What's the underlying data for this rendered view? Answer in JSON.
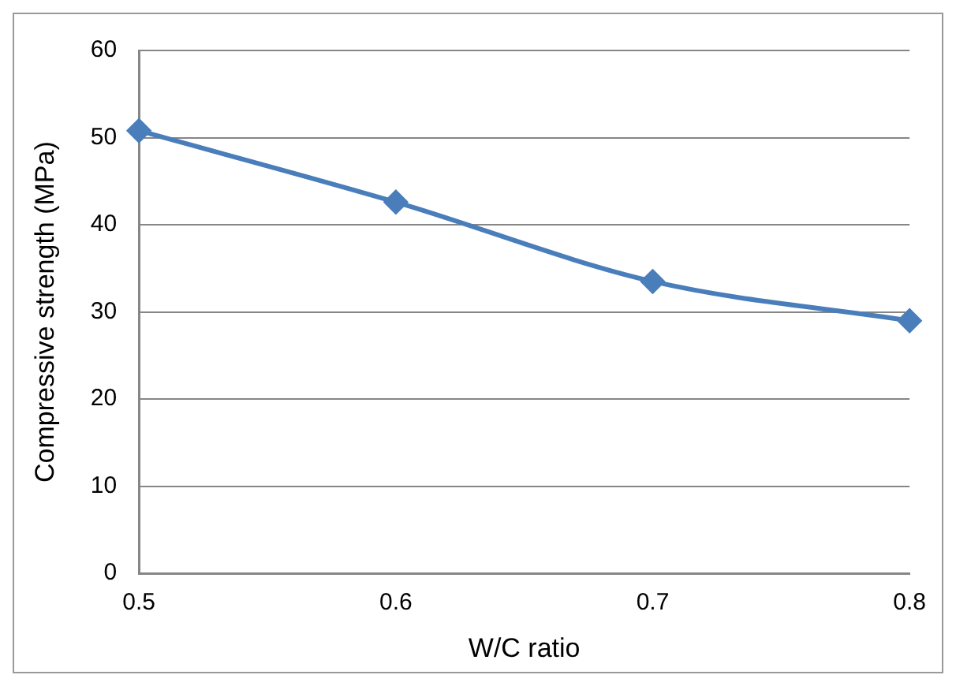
{
  "chart_data": {
    "type": "line",
    "xlabel": "W/C ratio",
    "ylabel": "Compressive strength (MPa)",
    "categories": [
      "0.5",
      "0.6",
      "0.7",
      "0.8"
    ],
    "series": [
      {
        "color": "#4a7ebb",
        "values": [
          50.8,
          42.6,
          33.5,
          29.0
        ]
      }
    ],
    "ylim": [
      0,
      60
    ],
    "yticks": [
      0,
      10,
      20,
      30,
      40,
      50,
      60
    ],
    "grid": "y",
    "marker": "diamond",
    "line_style": "solid",
    "legend": false
  }
}
